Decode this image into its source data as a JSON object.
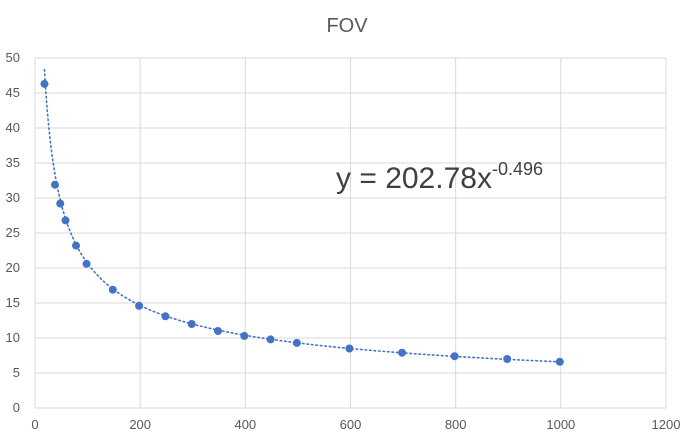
{
  "chart_data": {
    "type": "scatter",
    "title": "FOV",
    "xlabel": "",
    "ylabel": "",
    "xlim": [
      0,
      1200
    ],
    "ylim": [
      0,
      50
    ],
    "x_ticks": [
      0,
      200,
      400,
      600,
      800,
      1000,
      1200
    ],
    "y_ticks": [
      0,
      5,
      10,
      15,
      20,
      25,
      30,
      35,
      40,
      45,
      50
    ],
    "grid": true,
    "legend": "none",
    "series": [
      {
        "color": "#4472C4",
        "points": [
          {
            "x": 18,
            "y": 46.3
          },
          {
            "x": 38,
            "y": 31.9
          },
          {
            "x": 48,
            "y": 29.2
          },
          {
            "x": 58,
            "y": 26.8
          },
          {
            "x": 78,
            "y": 23.2
          },
          {
            "x": 98,
            "y": 20.6
          },
          {
            "x": 148,
            "y": 16.9
          },
          {
            "x": 198,
            "y": 14.6
          },
          {
            "x": 248,
            "y": 13.1
          },
          {
            "x": 298,
            "y": 12.0
          },
          {
            "x": 348,
            "y": 11.0
          },
          {
            "x": 398,
            "y": 10.3
          },
          {
            "x": 448,
            "y": 9.8
          },
          {
            "x": 498,
            "y": 9.3
          },
          {
            "x": 598,
            "y": 8.5
          },
          {
            "x": 698,
            "y": 7.9
          },
          {
            "x": 798,
            "y": 7.4
          },
          {
            "x": 898,
            "y": 7.0
          },
          {
            "x": 998,
            "y": 6.6
          }
        ]
      }
    ],
    "trendline": {
      "type": "power",
      "coefficient": 202.78,
      "exponent": -0.496,
      "style": "dotted",
      "color": "#4472C4",
      "equation_base": "y = 202.78x",
      "equation_exponent": "-0.496"
    }
  }
}
